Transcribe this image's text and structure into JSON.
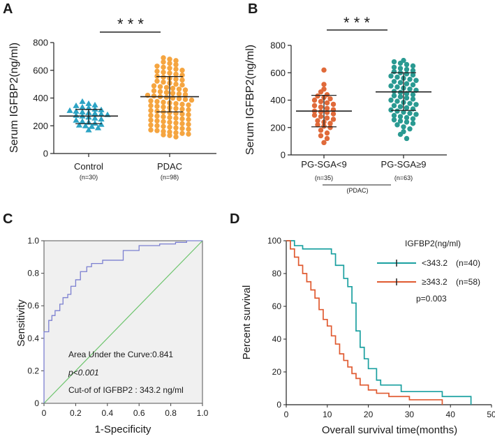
{
  "chart_data": [
    {
      "panel": "A",
      "type": "scatter",
      "ylabel": "Serum IGFBP2(ng/ml)",
      "ylim": [
        0,
        800
      ],
      "yticks": [
        0,
        200,
        400,
        600,
        800
      ],
      "significance": "* * *",
      "groups": [
        {
          "name": "Control",
          "n_label": "(n=30)",
          "color": "#2ba3c4",
          "marker": "triangle",
          "mean": 270,
          "sd_low": 215,
          "sd_high": 318,
          "values": [
            375,
            360,
            350,
            345,
            335,
            330,
            320,
            315,
            310,
            305,
            300,
            295,
            290,
            285,
            280,
            275,
            270,
            262,
            255,
            248,
            240,
            232,
            225,
            218,
            210,
            205,
            200,
            195,
            185,
            170
          ]
        },
        {
          "name": "PDAC",
          "n_label": "(n=98)",
          "color": "#f5a540",
          "marker": "circle",
          "mean": 410,
          "sd_low": 300,
          "sd_high": 555,
          "values": [
            690,
            680,
            670,
            660,
            650,
            640,
            630,
            622,
            615,
            608,
            600,
            593,
            586,
            580,
            572,
            565,
            558,
            550,
            543,
            536,
            530,
            522,
            515,
            508,
            500,
            494,
            488,
            482,
            476,
            470,
            464,
            458,
            452,
            446,
            440,
            435,
            430,
            425,
            420,
            415,
            410,
            405,
            400,
            395,
            390,
            385,
            380,
            375,
            370,
            365,
            360,
            355,
            350,
            345,
            340,
            335,
            330,
            325,
            320,
            315,
            310,
            305,
            300,
            295,
            290,
            285,
            280,
            275,
            270,
            265,
            260,
            255,
            250,
            245,
            240,
            235,
            230,
            225,
            220,
            215,
            210,
            205,
            200,
            195,
            190,
            185,
            180,
            175,
            170,
            165,
            160,
            155,
            150,
            145,
            140,
            135,
            130,
            120
          ]
        }
      ]
    },
    {
      "panel": "B",
      "type": "scatter",
      "ylabel": "Serum IGFBP2(ng/ml)",
      "ylim": [
        0,
        800
      ],
      "yticks": [
        0,
        200,
        400,
        600,
        800
      ],
      "significance": "* * *",
      "bracket_label": "(PDAC)",
      "groups": [
        {
          "name": "PG-SGA<9",
          "n_label": "(n=35)",
          "color": "#e06a3a",
          "marker": "circle",
          "mean": 320,
          "sd_low": 205,
          "sd_high": 435,
          "values": [
            620,
            515,
            480,
            460,
            440,
            430,
            420,
            410,
            400,
            390,
            380,
            370,
            360,
            350,
            340,
            330,
            320,
            315,
            310,
            300,
            290,
            280,
            270,
            260,
            250,
            240,
            230,
            220,
            210,
            200,
            180,
            160,
            140,
            120,
            90
          ]
        },
        {
          "name": "PG-SGA≥9",
          "n_label": "(n=63)",
          "color": "#2a9a92",
          "marker": "circle",
          "mean": 460,
          "sd_low": 325,
          "sd_high": 600,
          "values": [
            690,
            680,
            670,
            660,
            650,
            640,
            632,
            624,
            616,
            608,
            600,
            592,
            584,
            576,
            568,
            560,
            552,
            544,
            536,
            528,
            520,
            512,
            504,
            496,
            488,
            480,
            472,
            464,
            456,
            448,
            440,
            432,
            424,
            416,
            408,
            400,
            392,
            384,
            376,
            368,
            360,
            352,
            344,
            336,
            328,
            320,
            312,
            304,
            296,
            288,
            280,
            272,
            264,
            256,
            248,
            240,
            230,
            220,
            205,
            190,
            170,
            150,
            120
          ]
        }
      ]
    },
    {
      "panel": "C",
      "type": "line",
      "xlabel": "1-Specificity",
      "ylabel": "Sensitivity",
      "xlim": [
        0,
        1
      ],
      "ylim": [
        0,
        1
      ],
      "xticks": [
        "0",
        "0.2",
        "0.4",
        "0.6",
        "0.8",
        "1.0"
      ],
      "yticks": [
        "0",
        "0.2",
        "0.4",
        "0.6",
        "0.8",
        "1.0"
      ],
      "roc_color": "#7b7fd0",
      "reference_color": "#6cc46c",
      "background": "#f0f0f0",
      "annotations": [
        "Area Under the Curve:0.841",
        "p<0.001",
        "Cut-of of IGFBP2 : 343.2 ng/ml"
      ],
      "roc_points": [
        [
          0,
          0
        ],
        [
          0,
          0.44
        ],
        [
          0.03,
          0.44
        ],
        [
          0.03,
          0.51
        ],
        [
          0.05,
          0.51
        ],
        [
          0.05,
          0.54
        ],
        [
          0.07,
          0.54
        ],
        [
          0.07,
          0.57
        ],
        [
          0.1,
          0.57
        ],
        [
          0.1,
          0.61
        ],
        [
          0.12,
          0.61
        ],
        [
          0.12,
          0.65
        ],
        [
          0.15,
          0.65
        ],
        [
          0.15,
          0.67
        ],
        [
          0.17,
          0.67
        ],
        [
          0.17,
          0.72
        ],
        [
          0.2,
          0.72
        ],
        [
          0.2,
          0.76
        ],
        [
          0.23,
          0.76
        ],
        [
          0.23,
          0.81
        ],
        [
          0.27,
          0.81
        ],
        [
          0.27,
          0.84
        ],
        [
          0.3,
          0.84
        ],
        [
          0.3,
          0.86
        ],
        [
          0.37,
          0.86
        ],
        [
          0.37,
          0.88
        ],
        [
          0.5,
          0.88
        ],
        [
          0.5,
          0.94
        ],
        [
          0.6,
          0.94
        ],
        [
          0.6,
          0.97
        ],
        [
          0.73,
          0.97
        ],
        [
          0.73,
          0.98
        ],
        [
          0.83,
          0.98
        ],
        [
          0.83,
          0.99
        ],
        [
          0.9,
          0.99
        ],
        [
          0.9,
          1.0
        ],
        [
          1.0,
          1.0
        ]
      ]
    },
    {
      "panel": "D",
      "type": "line",
      "xlabel": "Overall survival time(months)",
      "ylabel": "Percent survival",
      "xlim": [
        0,
        50
      ],
      "ylim": [
        0,
        100
      ],
      "xticks": [
        "0",
        "10",
        "20",
        "30",
        "40",
        "50"
      ],
      "yticks": [
        "0",
        "20",
        "40",
        "60",
        "80",
        "100"
      ],
      "legend_title": "IGFBP2(ng/ml)",
      "p_value": "p=0.003",
      "series": [
        {
          "name": "<343.2",
          "n_label": "(n=40)",
          "color": "#1aa0a0",
          "steps": [
            [
              0,
              100
            ],
            [
              2,
              100
            ],
            [
              2,
              97
            ],
            [
              4,
              97
            ],
            [
              4,
              95
            ],
            [
              11,
              95
            ],
            [
              11,
              92
            ],
            [
              12,
              92
            ],
            [
              12,
              85
            ],
            [
              14,
              85
            ],
            [
              14,
              77
            ],
            [
              15,
              77
            ],
            [
              15,
              72
            ],
            [
              16,
              72
            ],
            [
              16,
              62
            ],
            [
              17,
              62
            ],
            [
              17,
              45
            ],
            [
              18,
              45
            ],
            [
              18,
              35
            ],
            [
              19,
              35
            ],
            [
              19,
              28
            ],
            [
              20,
              28
            ],
            [
              20,
              22
            ],
            [
              22,
              22
            ],
            [
              22,
              15
            ],
            [
              23,
              15
            ],
            [
              23,
              12
            ],
            [
              28,
              12
            ],
            [
              28,
              8
            ],
            [
              38,
              8
            ],
            [
              38,
              5
            ],
            [
              45,
              5
            ],
            [
              45,
              0
            ]
          ]
        },
        {
          "name": "≥343.2",
          "n_label": "(n=58)",
          "color": "#e05a30",
          "steps": [
            [
              0,
              100
            ],
            [
              1,
              100
            ],
            [
              1,
              95
            ],
            [
              2,
              95
            ],
            [
              2,
              90
            ],
            [
              3,
              90
            ],
            [
              3,
              85
            ],
            [
              4,
              85
            ],
            [
              4,
              80
            ],
            [
              5,
              80
            ],
            [
              5,
              75
            ],
            [
              6,
              75
            ],
            [
              6,
              70
            ],
            [
              7,
              70
            ],
            [
              7,
              65
            ],
            [
              8,
              65
            ],
            [
              8,
              58
            ],
            [
              9,
              58
            ],
            [
              9,
              52
            ],
            [
              10,
              52
            ],
            [
              10,
              48
            ],
            [
              11,
              48
            ],
            [
              11,
              42
            ],
            [
              12,
              42
            ],
            [
              12,
              37
            ],
            [
              13,
              37
            ],
            [
              13,
              31
            ],
            [
              14,
              31
            ],
            [
              14,
              27
            ],
            [
              15,
              27
            ],
            [
              15,
              23
            ],
            [
              16,
              23
            ],
            [
              16,
              19
            ],
            [
              17,
              19
            ],
            [
              17,
              16
            ],
            [
              18,
              16
            ],
            [
              18,
              12
            ],
            [
              20,
              12
            ],
            [
              20,
              9
            ],
            [
              22,
              9
            ],
            [
              22,
              7
            ],
            [
              25,
              7
            ],
            [
              25,
              5
            ],
            [
              30,
              5
            ],
            [
              30,
              3
            ],
            [
              38,
              3
            ],
            [
              38,
              0
            ]
          ]
        }
      ]
    }
  ]
}
